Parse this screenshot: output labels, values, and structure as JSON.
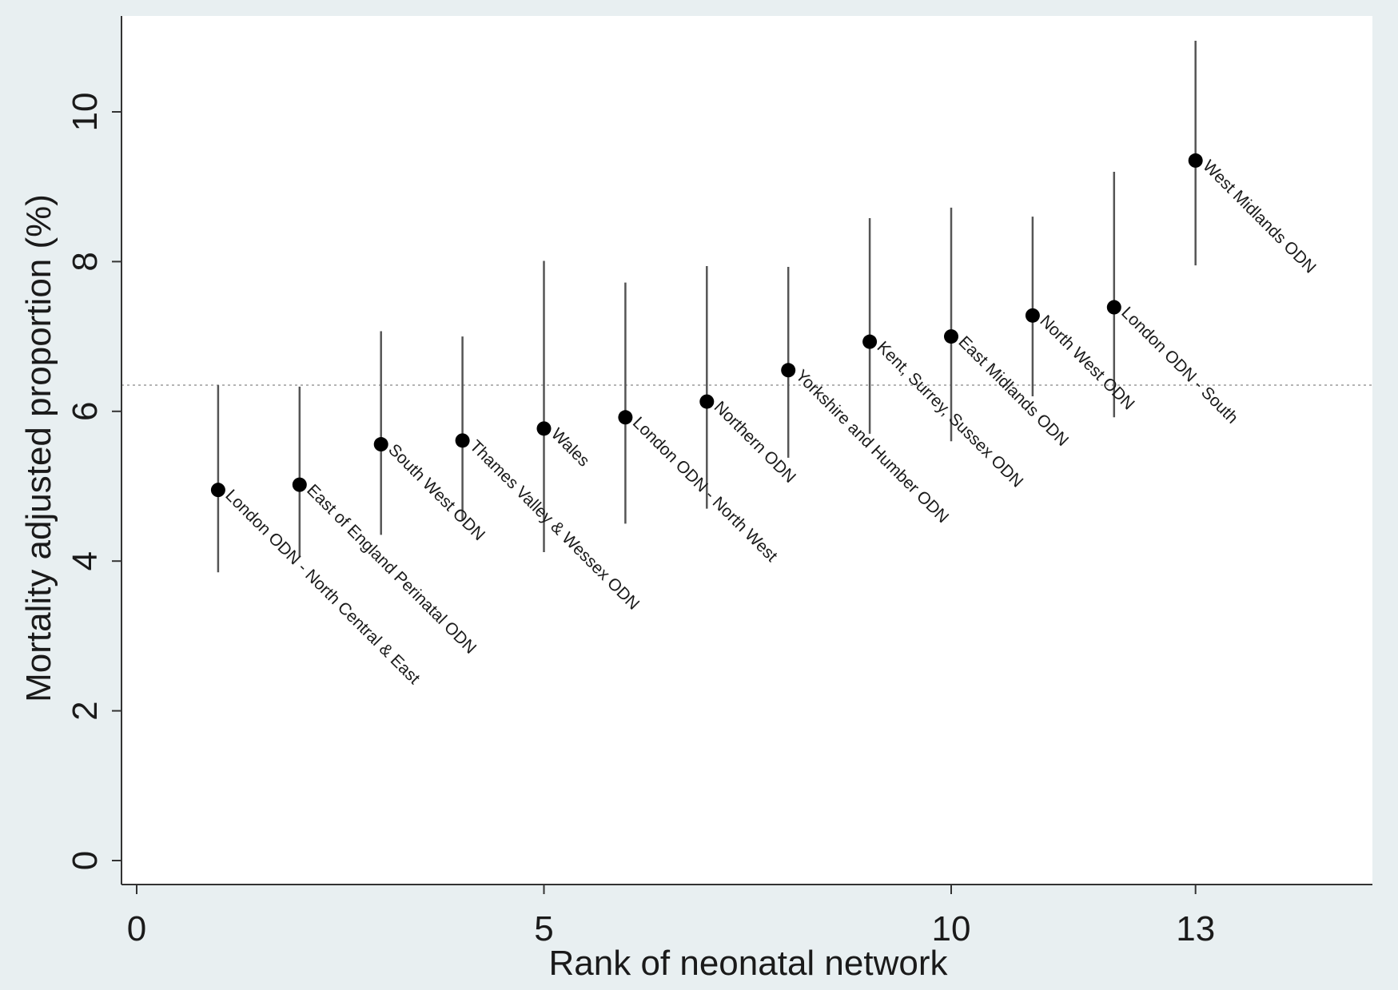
{
  "chart_data": {
    "type": "scatter",
    "title": "",
    "xlabel": "Rank of neonatal network",
    "ylabel": "Mortality adjusted proportion (%)",
    "xlim": [
      0,
      14.2
    ],
    "ylim": [
      0,
      11
    ],
    "x_ticks": [
      0,
      5,
      10,
      13
    ],
    "x_tick_labels": [
      "0",
      "5",
      "10",
      "13"
    ],
    "y_ticks": [
      0,
      2,
      4,
      6,
      8,
      10
    ],
    "y_tick_labels": [
      "0",
      "2",
      "4",
      "6",
      "8",
      "10"
    ],
    "reference_line_y": 6.35,
    "grid": false,
    "legend": "none",
    "colors": {
      "background": "#e8eff1",
      "plot_background": "#ffffff",
      "marker": "#000000",
      "ci_line": "#555555",
      "reference_line": "#b4b4b4"
    },
    "points": [
      {
        "rank": 1,
        "label": "London ODN - North Central & East",
        "value": 4.95,
        "lower": 3.85,
        "upper": 6.35
      },
      {
        "rank": 2,
        "label": "East of England Perinatal ODN",
        "value": 5.02,
        "lower": 4.05,
        "upper": 6.33
      },
      {
        "rank": 3,
        "label": "South West ODN",
        "value": 5.56,
        "lower": 4.35,
        "upper": 7.07
      },
      {
        "rank": 4,
        "label": "Thames Valley & Wessex ODN",
        "value": 5.61,
        "lower": 4.55,
        "upper": 7.0
      },
      {
        "rank": 5,
        "label": "Wales",
        "value": 5.77,
        "lower": 4.12,
        "upper": 8.01
      },
      {
        "rank": 6,
        "label": "London ODN - North West",
        "value": 5.92,
        "lower": 4.5,
        "upper": 7.72
      },
      {
        "rank": 7,
        "label": "Northern ODN",
        "value": 6.13,
        "lower": 4.7,
        "upper": 7.94
      },
      {
        "rank": 8,
        "label": "Yorkshire and Humber ODN",
        "value": 6.55,
        "lower": 5.38,
        "upper": 7.93
      },
      {
        "rank": 9,
        "label": "Kent, Surrey, Sussex ODN",
        "value": 6.93,
        "lower": 5.7,
        "upper": 8.58
      },
      {
        "rank": 10,
        "label": "East Midlands ODN",
        "value": 7.0,
        "lower": 5.6,
        "upper": 8.72
      },
      {
        "rank": 11,
        "label": "North West ODN",
        "value": 7.28,
        "lower": 6.2,
        "upper": 8.6
      },
      {
        "rank": 12,
        "label": "London ODN - South",
        "value": 7.39,
        "lower": 5.92,
        "upper": 9.2
      },
      {
        "rank": 13,
        "label": "West Midlands ODN",
        "value": 9.35,
        "lower": 7.95,
        "upper": 10.95
      }
    ]
  }
}
